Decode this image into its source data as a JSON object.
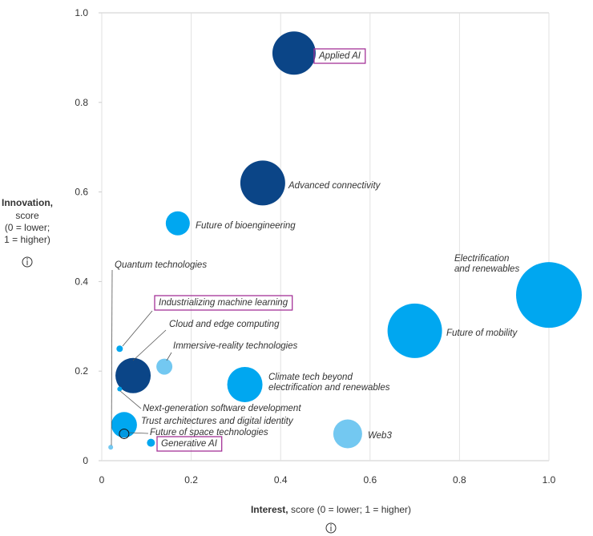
{
  "chart_data": {
    "type": "scatter",
    "x_label": "Interest,",
    "x_label_rest": " score (0 = lower; 1 = higher)",
    "y_label": "Innovation,",
    "y_label_lines": [
      "score",
      "(0 = lower;",
      "1 = higher)"
    ],
    "xlim": [
      0,
      1
    ],
    "ylim": [
      0,
      1
    ],
    "xticks": [
      0,
      0.2,
      0.4,
      0.6,
      0.8,
      {
        "value": 1,
        "label": "1.0"
      }
    ],
    "yticks": [
      0,
      0.2,
      0.4,
      0.6,
      0.8,
      {
        "value": 1,
        "label": "1.0"
      }
    ],
    "grid": true,
    "highlight_color": "#a43398",
    "points": [
      {
        "label": [
          "Applied AI"
        ],
        "x": 0.43,
        "y": 0.91,
        "size": 27,
        "color": "#0b4587",
        "highlight": true
      },
      {
        "label": [
          "Advanced connectivity"
        ],
        "x": 0.36,
        "y": 0.62,
        "size": 28,
        "color": "#0b4587"
      },
      {
        "label": [
          "Future of bioengineering"
        ],
        "x": 0.17,
        "y": 0.53,
        "size": 15,
        "color": "#00a7f0"
      },
      {
        "label": [
          "Quantum technologies"
        ],
        "x": 0.02,
        "y": 0.03,
        "size": 3,
        "color": "#73c8f1"
      },
      {
        "label": [
          "Industrializing machine learning"
        ],
        "x": 0.04,
        "y": 0.25,
        "size": 4,
        "color": "#00a7f0",
        "highlight": true
      },
      {
        "label": [
          "Cloud and edge computing"
        ],
        "x": 0.07,
        "y": 0.19,
        "size": 22,
        "color": "#0b4587"
      },
      {
        "label": [
          "Immersive-reality technologies"
        ],
        "x": 0.14,
        "y": 0.21,
        "size": 10,
        "color": "#73c8f1"
      },
      {
        "label": [
          "Next-generation software development"
        ],
        "x": 0.04,
        "y": 0.16,
        "size": 3,
        "color": "#00a7f0"
      },
      {
        "label": [
          "Climate tech beyond",
          "electrification and renewables"
        ],
        "x": 0.32,
        "y": 0.17,
        "size": 22,
        "color": "#00a7f0"
      },
      {
        "label": [
          "Trust architectures and digital identity"
        ],
        "x": 0.05,
        "y": 0.08,
        "size": 16,
        "color": "#00a7f0"
      },
      {
        "label": [
          "Future of space technologies"
        ],
        "x": 0.05,
        "y": 0.06,
        "size": 6,
        "color": "#0b4587"
      },
      {
        "label": [
          "Generative AI"
        ],
        "x": 0.11,
        "y": 0.04,
        "size": 5,
        "color": "#00a7f0",
        "highlight": true
      },
      {
        "label": [
          "Web3"
        ],
        "x": 0.55,
        "y": 0.06,
        "size": 18,
        "color": "#73c8f1"
      },
      {
        "label": [
          "Future of mobility"
        ],
        "x": 0.7,
        "y": 0.29,
        "size": 34,
        "color": "#00a7f0"
      },
      {
        "label": [
          "Electrification",
          "and renewables"
        ],
        "x": 1.0,
        "y": 0.37,
        "size": 41,
        "color": "#00a7f0"
      }
    ]
  }
}
